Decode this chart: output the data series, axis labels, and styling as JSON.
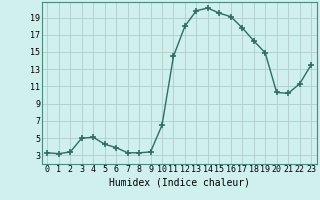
{
  "x": [
    0,
    1,
    2,
    3,
    4,
    5,
    6,
    7,
    8,
    9,
    10,
    11,
    12,
    13,
    14,
    15,
    16,
    17,
    18,
    19,
    20,
    21,
    22,
    23
  ],
  "y": [
    3.3,
    3.2,
    3.4,
    5.0,
    5.1,
    4.3,
    3.9,
    3.3,
    3.3,
    3.4,
    6.5,
    14.5,
    18.0,
    19.8,
    20.1,
    19.5,
    19.1,
    17.8,
    16.3,
    14.9,
    10.3,
    10.2,
    11.3,
    13.5
  ],
  "line_color": "#2d6e63",
  "marker": "+",
  "marker_size": 4,
  "marker_lw": 1.2,
  "bg_color": "#cff0ec",
  "grid_color": "#b0cdc9",
  "xlabel": "Humidex (Indice chaleur)",
  "xlabel_fontsize": 7,
  "xtick_labels": [
    "0",
    "1",
    "2",
    "3",
    "4",
    "5",
    "6",
    "7",
    "8",
    "9",
    "10",
    "11",
    "12",
    "13",
    "14",
    "15",
    "16",
    "17",
    "18",
    "19",
    "20",
    "21",
    "22",
    "23"
  ],
  "ytick_values": [
    3,
    5,
    7,
    9,
    11,
    13,
    15,
    17,
    19
  ],
  "ylim": [
    2.0,
    20.8
  ],
  "xlim": [
    -0.5,
    23.5
  ],
  "tick_fontsize": 6,
  "line_width": 1.0
}
